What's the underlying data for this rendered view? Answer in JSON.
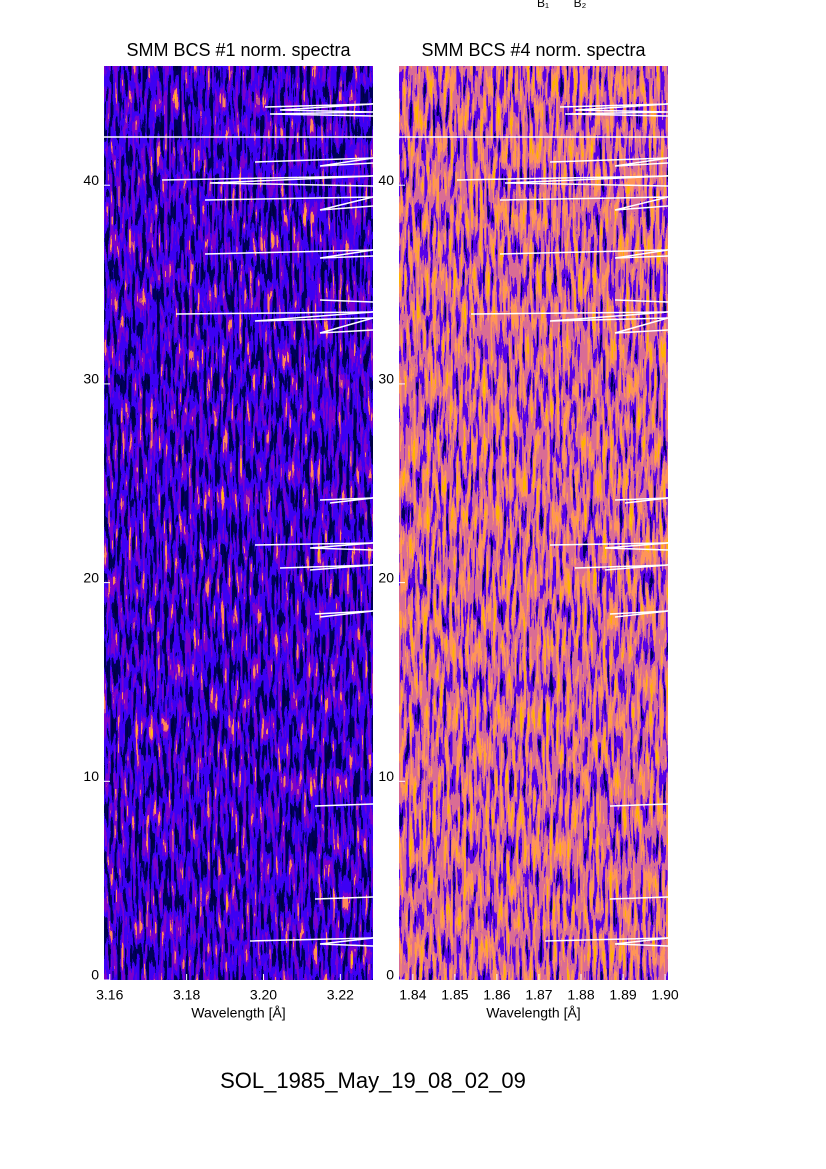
{
  "top_labels": [
    "B₁",
    "B₂"
  ],
  "figure_title": "SOL_1985_May_19_08_02_09",
  "chart_data": [
    {
      "type": "heatmap",
      "title": "SMM BCS #1 norm. spectra",
      "xlabel": "Wavelength [Å]",
      "xlim": [
        3.1585,
        3.2285
      ],
      "xticks": [
        3.16,
        3.18,
        {
          "value": 3.2,
          "label": "3.20"
        },
        3.22
      ],
      "ylim": [
        0,
        46
      ],
      "yticks": [
        0,
        10,
        20,
        30,
        40
      ]
    },
    {
      "type": "heatmap",
      "title": "SMM BCS #4 norm. spectra",
      "xlabel": "Wavelength [Å]",
      "xlim": [
        1.8367,
        1.9007
      ],
      "xticks": [
        1.84,
        1.85,
        1.86,
        1.87,
        1.88,
        1.89,
        {
          "value": 1.9,
          "label": "1.90"
        }
      ],
      "ylim": [
        0,
        46
      ],
      "yticks": [
        0,
        10,
        20,
        30,
        40
      ]
    }
  ]
}
